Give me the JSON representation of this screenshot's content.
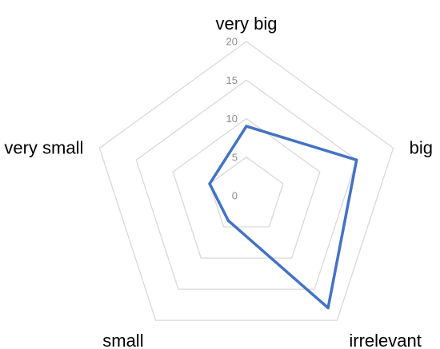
{
  "chart_data": {
    "type": "radar",
    "categories": [
      "very big",
      "big",
      "irrelevant",
      "small",
      "very small"
    ],
    "series": [
      {
        "values": [
          9,
          15,
          18,
          4,
          5
        ],
        "color": "#4472c4"
      }
    ],
    "radial_axis": {
      "min": 0,
      "max": 20,
      "ticks": [
        0,
        5,
        10,
        15,
        20
      ]
    },
    "grid": true,
    "grid_color": "#d9d9d9",
    "legend": "none"
  }
}
